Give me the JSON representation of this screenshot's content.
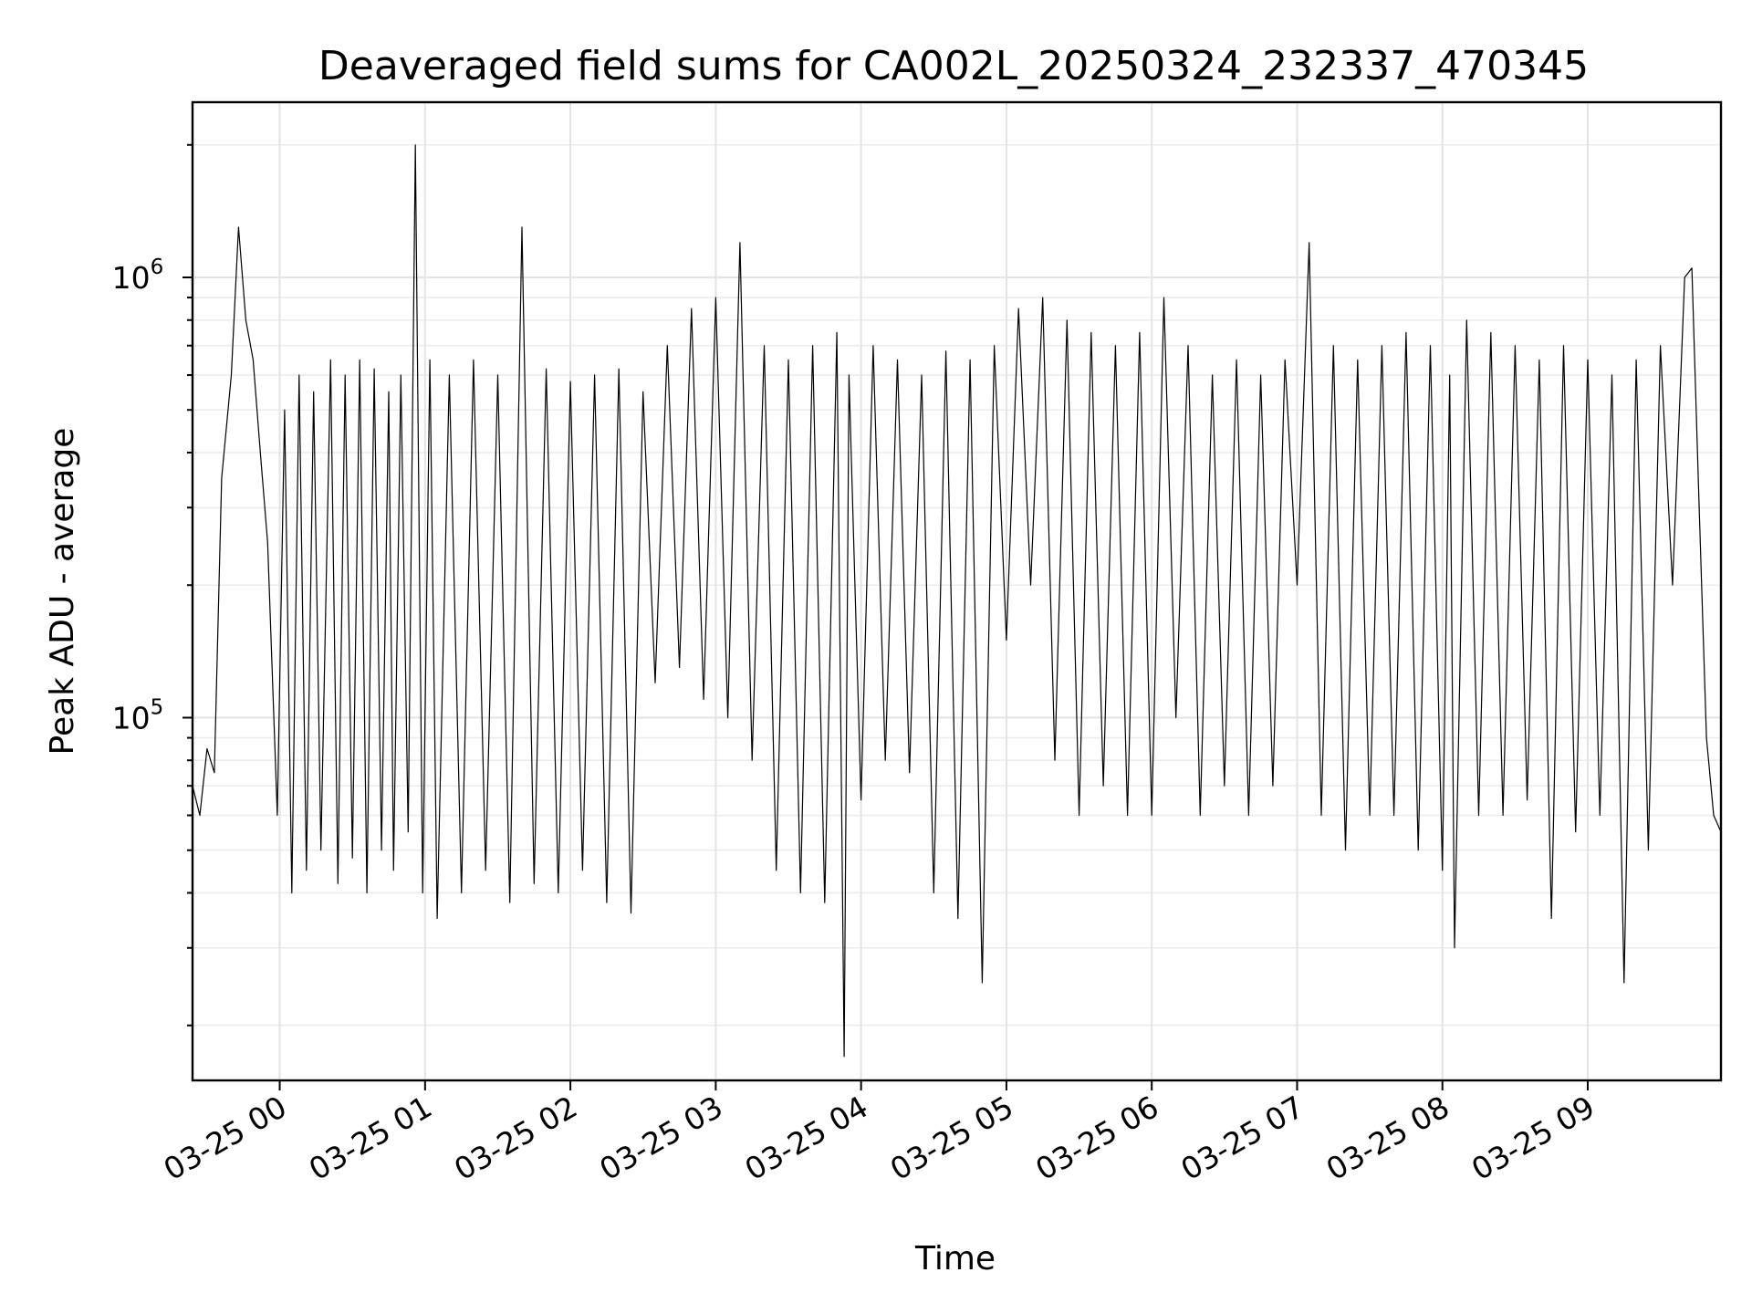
{
  "chart_data": {
    "type": "line",
    "title": "Deaveraged field sums for CA002L_20250324_232337_470345",
    "xlabel": "Time",
    "ylabel": "Peak ADU - average",
    "x_range": [
      "03-24 23:24",
      "03-25 09:55"
    ],
    "ylim": [
      15000,
      2500000
    ],
    "yscale": "log",
    "grid": true,
    "legend": "none",
    "line_color": "#000000",
    "x_ticks": [
      "03-25 00",
      "03-25 01",
      "03-25 02",
      "03-25 03",
      "03-25 04",
      "03-25 05",
      "03-25 06",
      "03-25 07",
      "03-25 08",
      "03-25 09"
    ],
    "y_ticks": [
      {
        "base": "10",
        "exp": "5",
        "value": 100000
      },
      {
        "base": "10",
        "exp": "6",
        "value": 1000000
      }
    ],
    "series": [
      {
        "x": [
          "03-24 23:24",
          "03-24 23:27",
          "03-24 23:30",
          "03-24 23:33",
          "03-24 23:36",
          "03-24 23:40",
          "03-24 23:43",
          "03-24 23:46",
          "03-24 23:49",
          "03-24 23:52",
          "03-24 23:55",
          "03-24 23:59",
          "03-25 00:02",
          "03-25 00:05",
          "03-25 00:08",
          "03-25 00:11",
          "03-25 00:14",
          "03-25 00:17",
          "03-25 00:21",
          "03-25 00:24",
          "03-25 00:27",
          "03-25 00:30",
          "03-25 00:33",
          "03-25 00:36",
          "03-25 00:39",
          "03-25 00:42",
          "03-25 00:45",
          "03-25 00:47",
          "03-25 00:50",
          "03-25 00:53",
          "03-25 00:56",
          "03-25 00:59",
          "03-25 01:02",
          "03-25 01:05",
          "03-25 01:10",
          "03-25 01:15",
          "03-25 01:20",
          "03-25 01:25",
          "03-25 01:30",
          "03-25 01:35",
          "03-25 01:40",
          "03-25 01:45",
          "03-25 01:50",
          "03-25 01:55",
          "03-25 02:00",
          "03-25 02:05",
          "03-25 02:10",
          "03-25 02:15",
          "03-25 02:20",
          "03-25 02:25",
          "03-25 02:30",
          "03-25 02:35",
          "03-25 02:40",
          "03-25 02:45",
          "03-25 02:50",
          "03-25 02:55",
          "03-25 03:00",
          "03-25 03:05",
          "03-25 03:10",
          "03-25 03:15",
          "03-25 03:20",
          "03-25 03:25",
          "03-25 03:30",
          "03-25 03:35",
          "03-25 03:40",
          "03-25 03:45",
          "03-25 03:50",
          "03-25 03:53",
          "03-25 03:55",
          "03-25 04:00",
          "03-25 04:05",
          "03-25 04:10",
          "03-25 04:15",
          "03-25 04:20",
          "03-25 04:25",
          "03-25 04:30",
          "03-25 04:35",
          "03-25 04:40",
          "03-25 04:45",
          "03-25 04:50",
          "03-25 04:55",
          "03-25 05:00",
          "03-25 05:05",
          "03-25 05:10",
          "03-25 05:15",
          "03-25 05:20",
          "03-25 05:25",
          "03-25 05:30",
          "03-25 05:35",
          "03-25 05:40",
          "03-25 05:45",
          "03-25 05:50",
          "03-25 05:55",
          "03-25 06:00",
          "03-25 06:05",
          "03-25 06:10",
          "03-25 06:15",
          "03-25 06:20",
          "03-25 06:25",
          "03-25 06:30",
          "03-25 06:35",
          "03-25 06:40",
          "03-25 06:45",
          "03-25 06:50",
          "03-25 06:55",
          "03-25 07:00",
          "03-25 07:05",
          "03-25 07:10",
          "03-25 07:15",
          "03-25 07:20",
          "03-25 07:25",
          "03-25 07:30",
          "03-25 07:35",
          "03-25 07:40",
          "03-25 07:45",
          "03-25 07:50",
          "03-25 07:55",
          "03-25 08:00",
          "03-25 08:03",
          "03-25 08:05",
          "03-25 08:10",
          "03-25 08:15",
          "03-25 08:20",
          "03-25 08:25",
          "03-25 08:30",
          "03-25 08:35",
          "03-25 08:40",
          "03-25 08:45",
          "03-25 08:50",
          "03-25 08:55",
          "03-25 09:00",
          "03-25 09:05",
          "03-25 09:10",
          "03-25 09:15",
          "03-25 09:20",
          "03-25 09:25",
          "03-25 09:30",
          "03-25 09:35",
          "03-25 09:40",
          "03-25 09:43",
          "03-25 09:46",
          "03-25 09:49",
          "03-25 09:52",
          "03-25 09:55"
        ],
        "y": [
          70000,
          60000,
          85000,
          75000,
          350000,
          600000,
          1300000,
          800000,
          650000,
          400000,
          250000,
          60000,
          500000,
          40000,
          600000,
          45000,
          550000,
          50000,
          650000,
          42000,
          600000,
          48000,
          650000,
          40000,
          620000,
          50000,
          550000,
          45000,
          600000,
          55000,
          2000000,
          40000,
          650000,
          35000,
          600000,
          40000,
          650000,
          45000,
          600000,
          38000,
          1300000,
          42000,
          620000,
          40000,
          580000,
          45000,
          600000,
          38000,
          620000,
          36000,
          550000,
          120000,
          700000,
          130000,
          850000,
          110000,
          900000,
          100000,
          1200000,
          80000,
          700000,
          45000,
          650000,
          40000,
          700000,
          38000,
          750000,
          17000,
          600000,
          65000,
          700000,
          80000,
          650000,
          75000,
          600000,
          40000,
          680000,
          35000,
          650000,
          25000,
          700000,
          150000,
          850000,
          200000,
          900000,
          80000,
          800000,
          60000,
          750000,
          70000,
          700000,
          60000,
          750000,
          60000,
          900000,
          100000,
          700000,
          60000,
          600000,
          70000,
          650000,
          60000,
          600000,
          70000,
          650000,
          200000,
          1200000,
          60000,
          700000,
          50000,
          650000,
          60000,
          700000,
          60000,
          750000,
          50000,
          700000,
          45000,
          600000,
          30000,
          800000,
          60000,
          750000,
          60000,
          700000,
          65000,
          650000,
          35000,
          700000,
          55000,
          650000,
          60000,
          600000,
          25000,
          650000,
          50000,
          700000,
          200000,
          1000000,
          1050000,
          300000,
          90000,
          60000,
          55000
        ]
      }
    ]
  }
}
